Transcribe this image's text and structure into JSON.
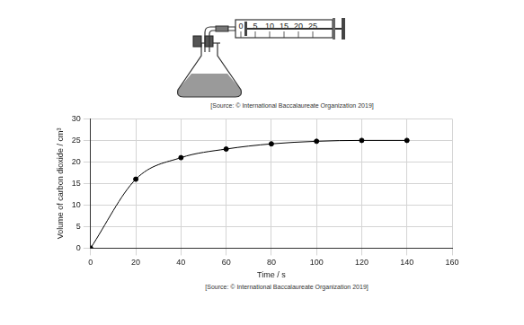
{
  "diagram": {
    "scale": [
      0,
      5,
      10,
      15,
      20,
      25
    ],
    "source": "[Source: © International Baccalaureate Organization 2019]"
  },
  "chart_data": {
    "type": "line",
    "x_label": "Time / s",
    "y_label": "Volume of carbon dioxide / cm³",
    "x": [
      0,
      20,
      40,
      60,
      80,
      100,
      120,
      140
    ],
    "values": [
      0,
      16,
      21,
      23,
      24.2,
      24.8,
      25,
      25
    ],
    "color": "#000000",
    "marker": "circle",
    "line_style": "solid",
    "xlim": [
      0,
      160
    ],
    "xticks": [
      0,
      20,
      40,
      60,
      80,
      100,
      120,
      140,
      160
    ],
    "ylim": [
      0,
      30
    ],
    "yticks": [
      0,
      5,
      10,
      15,
      20,
      25,
      30
    ],
    "grid": true,
    "annotations": [
      "[Source: © International Baccalaureate Organization 2019]"
    ]
  }
}
